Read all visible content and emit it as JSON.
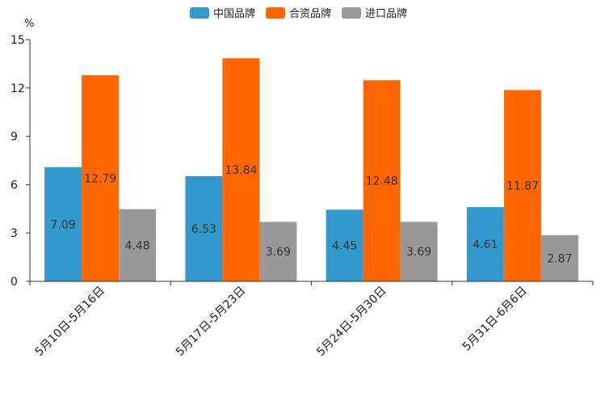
{
  "chart_data": {
    "type": "bar",
    "title": "",
    "ylabel": "%",
    "xlabel": "",
    "ylim": [
      0,
      15
    ],
    "yticks": [
      "0",
      "3",
      "6",
      "9",
      "12",
      "15"
    ],
    "categories": [
      "5月10日-5月16日",
      "5月17日-5月23日",
      "5月24日-5月30日",
      "5月31日-6月6日"
    ],
    "series": [
      {
        "name": "中国品牌",
        "color": "#3399cc",
        "values": [
          7.09,
          6.53,
          4.45,
          4.61
        ],
        "labels": [
          "7.09",
          "6.53",
          "4.45",
          "4.61"
        ]
      },
      {
        "name": "合资品牌",
        "color": "#ff6600",
        "values": [
          12.79,
          13.84,
          12.48,
          11.87
        ],
        "labels": [
          "12.79",
          "13.84",
          "12.48",
          "11.87"
        ]
      },
      {
        "name": "进口品牌",
        "color": "#999999",
        "values": [
          4.48,
          3.69,
          3.69,
          2.87
        ],
        "labels": [
          "4.48",
          "3.69",
          "3.69",
          "2.87"
        ]
      }
    ],
    "legend_position": "top-center",
    "grid": false
  }
}
